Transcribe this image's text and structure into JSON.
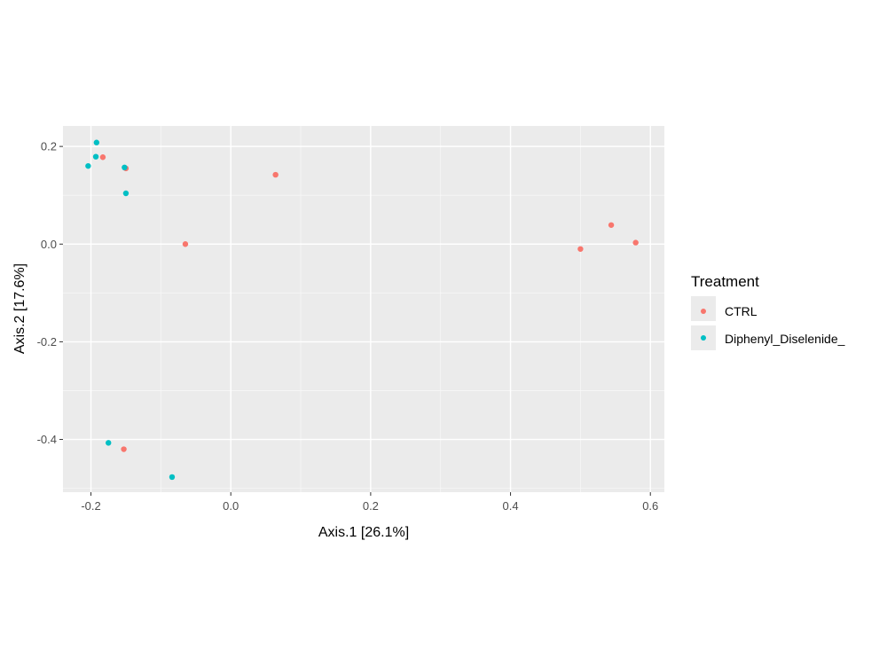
{
  "chart_data": {
    "type": "scatter",
    "xlabel": "Axis.1   [26.1%]",
    "ylabel": "Axis.2   [17.6%]",
    "xlim": [
      -0.24,
      0.62
    ],
    "ylim": [
      -0.508,
      0.242
    ],
    "x_ticks": [
      -0.2,
      0.0,
      0.2,
      0.4,
      0.6
    ],
    "x_tick_labels": [
      "-0.2",
      "0.0",
      "0.2",
      "0.4",
      "0.6"
    ],
    "y_ticks": [
      0.2,
      0.0,
      -0.2,
      -0.4
    ],
    "y_tick_labels": [
      "0.2",
      "0.0",
      "-0.2",
      "-0.4"
    ],
    "grid": true,
    "legend": {
      "title": "Treatment",
      "placement": "right"
    },
    "series": [
      {
        "name": "CTRL",
        "color": "#F8766D",
        "points": [
          {
            "x": -0.183,
            "y": 0.178
          },
          {
            "x": -0.15,
            "y": 0.155
          },
          {
            "x": 0.064,
            "y": 0.142
          },
          {
            "x": -0.065,
            "y": 0.0
          },
          {
            "x": -0.153,
            "y": -0.42
          },
          {
            "x": 0.5,
            "y": -0.01
          },
          {
            "x": 0.544,
            "y": 0.039
          },
          {
            "x": 0.579,
            "y": 0.003
          }
        ]
      },
      {
        "name": "Diphenyl_Diselenide_",
        "color": "#00BFC4",
        "points": [
          {
            "x": -0.192,
            "y": 0.208
          },
          {
            "x": -0.193,
            "y": 0.179
          },
          {
            "x": -0.204,
            "y": 0.16
          },
          {
            "x": -0.152,
            "y": 0.157
          },
          {
            "x": -0.15,
            "y": 0.104
          },
          {
            "x": -0.175,
            "y": -0.407
          },
          {
            "x": -0.084,
            "y": -0.477
          }
        ]
      }
    ]
  }
}
